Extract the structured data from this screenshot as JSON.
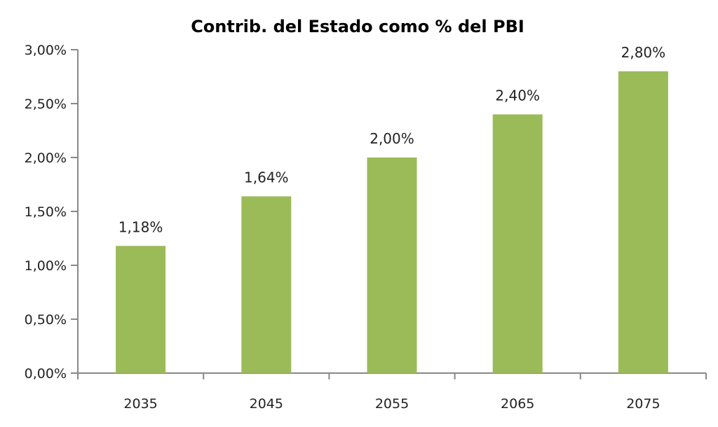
{
  "chart_data": {
    "type": "bar",
    "title": "Contrib. del Estado como % del PBI",
    "categories": [
      "2035",
      "2045",
      "2055",
      "2065",
      "2075"
    ],
    "values": [
      1.18,
      1.64,
      2.0,
      2.4,
      2.8
    ],
    "data_labels": [
      "1,18%",
      "1,64%",
      "2,00%",
      "2,40%",
      "2,80%"
    ],
    "yticks": [
      "0,00%",
      "0,50%",
      "1,00%",
      "1,50%",
      "2,00%",
      "2,50%",
      "3,00%"
    ],
    "ylim": [
      0,
      3
    ],
    "xlabel": "",
    "ylabel": "",
    "grid": false,
    "legend": "none",
    "bar_color": "#9bbb59"
  }
}
